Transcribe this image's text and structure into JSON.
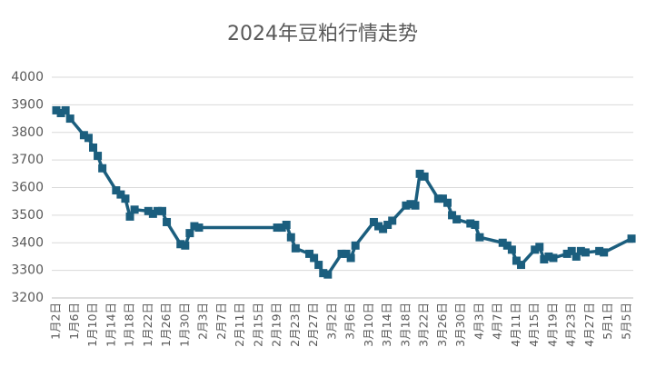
{
  "chart_data": {
    "type": "line",
    "title": "2024年豆粕行情走势",
    "x": [
      "1月2日",
      "1月3日",
      "1月4日",
      "1月5日",
      "1月8日",
      "1月9日",
      "1月10日",
      "1月11日",
      "1月12日",
      "1月15日",
      "1月16日",
      "1月17日",
      "1月18日",
      "1月19日",
      "1月22日",
      "1月23日",
      "1月24日",
      "1月25日",
      "1月26日",
      "1月29日",
      "1月30日",
      "1月31日",
      "2月1日",
      "2月2日",
      "2月19日",
      "2月20日",
      "2月21日",
      "2月22日",
      "2月23日",
      "2月26日",
      "2月27日",
      "2月28日",
      "2月29日",
      "3月1日",
      "3月4日",
      "3月5日",
      "3月6日",
      "3月7日",
      "3月11日",
      "3月12日",
      "3月13日",
      "3月14日",
      "3月15日",
      "3月18日",
      "3月19日",
      "3月20日",
      "3月21日",
      "3月22日",
      "3月25日",
      "3月26日",
      "3月27日",
      "3月28日",
      "3月29日",
      "4月1日",
      "4月2日",
      "4月3日",
      "4月8日",
      "4月9日",
      "4月10日",
      "4月11日",
      "4月12日",
      "4月15日",
      "4月16日",
      "4月17日",
      "4月18日",
      "4月19日",
      "4月22日",
      "4月23日",
      "4月24日",
      "4月25日",
      "4月26日",
      "4月29日",
      "4月30日",
      "5月6日"
    ],
    "series": [
      {
        "name": "豆粕",
        "color": "#1b5e7e",
        "values": [
          3880,
          3870,
          3880,
          3850,
          3790,
          3780,
          3745,
          3715,
          3670,
          3590,
          3575,
          3560,
          3495,
          3520,
          3515,
          3505,
          3515,
          3515,
          3475,
          3395,
          3390,
          3435,
          3460,
          3455,
          3455,
          3455,
          3465,
          3420,
          3380,
          3360,
          3345,
          3320,
          3290,
          3285,
          3360,
          3360,
          3345,
          3390,
          3475,
          3460,
          3450,
          3465,
          3480,
          3535,
          3540,
          3535,
          3650,
          3640,
          3560,
          3560,
          3545,
          3500,
          3485,
          3470,
          3465,
          3420,
          3400,
          3390,
          3375,
          3335,
          3320,
          3375,
          3385,
          3340,
          3350,
          3345,
          3360,
          3370,
          3350,
          3370,
          3365,
          3370,
          3365,
          3415
        ]
      }
    ],
    "ylim": [
      3200,
      4000
    ],
    "yticks": [
      3200,
      3300,
      3400,
      3500,
      3600,
      3700,
      3800,
      3900,
      4000
    ],
    "xticks": [
      "1月2日",
      "1月6日",
      "1月10日",
      "1月14日",
      "1月18日",
      "1月22日",
      "1月26日",
      "1月30日",
      "2月3日",
      "2月7日",
      "2月11日",
      "2月15日",
      "2月19日",
      "2月23日",
      "2月27日",
      "3月2日",
      "3月6日",
      "3月10日",
      "3月14日",
      "3月18日",
      "3月22日",
      "3月26日",
      "3月30日",
      "4月3日",
      "4月7日",
      "4月11日",
      "4月15日",
      "4月19日",
      "4月23日",
      "4月27日",
      "5月1日",
      "5月5日"
    ],
    "grid": true
  }
}
